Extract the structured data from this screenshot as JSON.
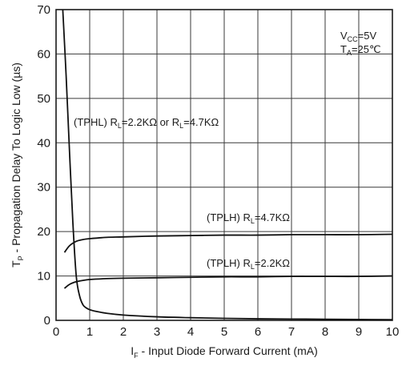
{
  "chart_data": {
    "type": "line",
    "xlabel": {
      "main": "I",
      "sub": "F",
      "rest": " - Input Diode Forward Current (mA)"
    },
    "ylabel": {
      "main": "T",
      "sub": "P",
      "rest": " - Propagation Delay To Logic Low (µs)"
    },
    "xlim": [
      0,
      10
    ],
    "ylim": [
      0,
      70
    ],
    "xticks": [
      0,
      1,
      2,
      3,
      4,
      5,
      6,
      7,
      8,
      9,
      10
    ],
    "yticks": [
      0,
      10,
      20,
      30,
      40,
      50,
      60,
      70
    ],
    "grid": true,
    "conditions": [
      {
        "main": "V",
        "sub": "CC",
        "rest": "=5V"
      },
      {
        "main": "T",
        "sub": "A",
        "rest": "=25℃"
      }
    ],
    "series": [
      {
        "label_parts": [
          "(TPHL) R",
          "L",
          "=2.2KΩ or R",
          "L",
          "=4.7KΩ"
        ],
        "x": [
          0.2,
          0.3,
          0.4,
          0.5,
          0.6,
          0.7,
          0.8,
          0.9,
          1.0,
          1.2,
          1.5,
          2.0,
          3.0,
          4.0,
          5.0,
          6.0,
          7.0,
          8.0,
          9.0,
          10.0
        ],
        "y": [
          70,
          55,
          38,
          22,
          10,
          5.5,
          3.5,
          2.8,
          2.4,
          2.0,
          1.6,
          1.2,
          0.8,
          0.6,
          0.45,
          0.35,
          0.3,
          0.25,
          0.2,
          0.15
        ]
      },
      {
        "label_parts": [
          "(TPLH) R",
          "L",
          "=4.7KΩ"
        ],
        "x": [
          0.25,
          0.4,
          0.6,
          0.8,
          1.0,
          1.5,
          2.0,
          3.0,
          4.0,
          5.0,
          6.0,
          7.0,
          8.0,
          9.0,
          10.0
        ],
        "y": [
          15.3,
          16.8,
          17.8,
          18.2,
          18.4,
          18.7,
          18.8,
          19.0,
          19.1,
          19.2,
          19.2,
          19.3,
          19.3,
          19.3,
          19.4
        ]
      },
      {
        "label_parts": [
          "(TPLH) R",
          "L",
          "=2.2KΩ"
        ],
        "x": [
          0.25,
          0.4,
          0.6,
          0.8,
          1.0,
          1.5,
          2.0,
          3.0,
          4.0,
          5.0,
          6.0,
          7.0,
          8.0,
          9.0,
          10.0
        ],
        "y": [
          7.2,
          8.1,
          8.7,
          9.0,
          9.2,
          9.4,
          9.5,
          9.6,
          9.7,
          9.8,
          9.8,
          9.9,
          9.9,
          9.9,
          10.0
        ]
      }
    ]
  }
}
